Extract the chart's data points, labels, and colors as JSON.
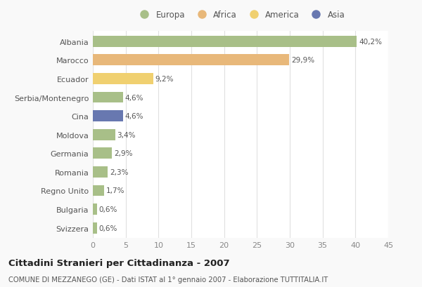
{
  "categories": [
    "Albania",
    "Marocco",
    "Ecuador",
    "Serbia/Montenegro",
    "Cina",
    "Moldova",
    "Germania",
    "Romania",
    "Regno Unito",
    "Bulgaria",
    "Svizzera"
  ],
  "values": [
    40.2,
    29.9,
    9.2,
    4.6,
    4.6,
    3.4,
    2.9,
    2.3,
    1.7,
    0.6,
    0.6
  ],
  "labels": [
    "40,2%",
    "29,9%",
    "9,2%",
    "4,6%",
    "4,6%",
    "3,4%",
    "2,9%",
    "2,3%",
    "1,7%",
    "0,6%",
    "0,6%"
  ],
  "colors": [
    "#a8bf88",
    "#e8b87a",
    "#f0d070",
    "#a8bf88",
    "#6878b0",
    "#a8bf88",
    "#a8bf88",
    "#a8bf88",
    "#a8bf88",
    "#a8bf88",
    "#a8bf88"
  ],
  "legend_labels": [
    "Europa",
    "Africa",
    "America",
    "Asia"
  ],
  "legend_colors": [
    "#a8bf88",
    "#e8b87a",
    "#f0d070",
    "#6878b0"
  ],
  "title": "Cittadini Stranieri per Cittadinanza - 2007",
  "subtitle": "COMUNE DI MEZZANEGO (GE) - Dati ISTAT al 1° gennaio 2007 - Elaborazione TUTTITALIA.IT",
  "xlim": [
    0,
    45
  ],
  "xticks": [
    0,
    5,
    10,
    15,
    20,
    25,
    30,
    35,
    40,
    45
  ],
  "background_color": "#f9f9f9",
  "bar_bg_color": "#ffffff",
  "grid_color": "#e0e0e0"
}
